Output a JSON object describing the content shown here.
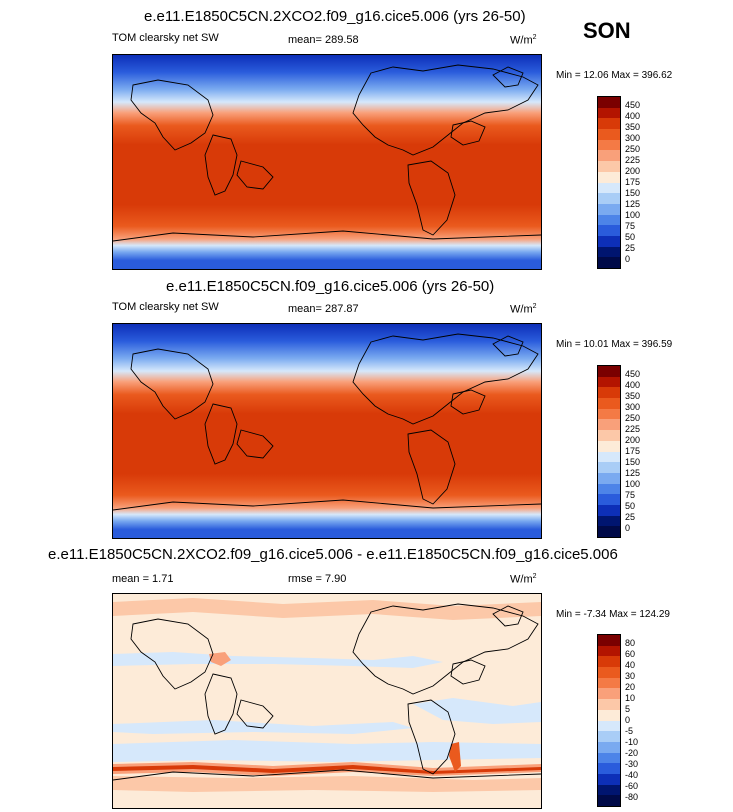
{
  "season": "SON",
  "panels": [
    {
      "title": "e.e11.E1850C5CN.2XCO2.f09_g16.cice5.006 (yrs 26-50)",
      "left_label": "TOM clearsky net SW",
      "center_label": "mean= 289.58",
      "units": "W/m",
      "units_sup": "2",
      "minmax": "Min =  12.06 Max = 396.62",
      "legend_labels": [
        "450",
        "400",
        "350",
        "300",
        "250",
        "225",
        "200",
        "175",
        "150",
        "125",
        "100",
        "75",
        "50",
        "25",
        "0"
      ]
    },
    {
      "title": "e.e11.E1850C5CN.f09_g16.cice5.006 (yrs 26-50)",
      "left_label": "TOM clearsky net SW",
      "center_label": "mean= 287.87",
      "units": "W/m",
      "units_sup": "2",
      "minmax": "Min =  10.01 Max = 396.59",
      "legend_labels": [
        "450",
        "400",
        "350",
        "300",
        "250",
        "225",
        "200",
        "175",
        "150",
        "125",
        "100",
        "75",
        "50",
        "25",
        "0"
      ]
    },
    {
      "title": "e.e11.E1850C5CN.2XCO2.f09_g16.cice5.006 - e.e11.E1850C5CN.f09_g16.cice5.006",
      "left_label": "mean =   1.71",
      "center_label": "rmse =   7.90",
      "units": "W/m",
      "units_sup": "2",
      "minmax": "Min =  -7.34 Max = 124.29",
      "legend_labels": [
        "80",
        "60",
        "40",
        "30",
        "20",
        "10",
        "5",
        "0",
        "-5",
        "-10",
        "-20",
        "-30",
        "-40",
        "-60",
        "-80"
      ]
    }
  ],
  "colors": {
    "abs_scale": [
      "#7a0000",
      "#b31400",
      "#d83a08",
      "#ea5a1e",
      "#f47a45",
      "#f9a07a",
      "#fcc8a8",
      "#fdebd8",
      "#d6e8fb",
      "#a9cdf6",
      "#7aaaf0",
      "#4d84e8",
      "#2a5cdc",
      "#0d2fb8",
      "#001570",
      "#000a48"
    ],
    "diff_scale": [
      "#7a0000",
      "#b31400",
      "#d83a08",
      "#ea5a1e",
      "#f47a45",
      "#f9a07a",
      "#fcc8a8",
      "#fdebd8",
      "#d6e8fb",
      "#a9cdf6",
      "#7aaaf0",
      "#4d84e8",
      "#2a5cdc",
      "#0d2fb8",
      "#001570",
      "#000a48"
    ]
  }
}
